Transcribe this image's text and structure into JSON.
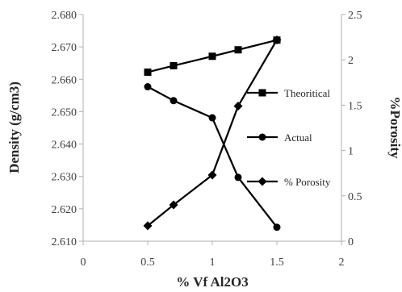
{
  "chart_data": {
    "type": "line",
    "xlabel": "% Vf Al2O3",
    "ylabel": "Density (g/cm3)",
    "y2label": "%Porosity",
    "x_ticks": [
      "0",
      "0.5",
      "1",
      "1.5",
      "2"
    ],
    "y_ticks": [
      "2.610",
      "2.620",
      "2.630",
      "2.640",
      "2.650",
      "2.660",
      "2.670",
      "2.680"
    ],
    "y2_ticks": [
      "0",
      "0.5",
      "1",
      "1.5",
      "2",
      "2.5"
    ],
    "xlim": [
      0,
      2
    ],
    "ylim": [
      2.61,
      2.68
    ],
    "y2lim": [
      0,
      2.5
    ],
    "grid": false,
    "legend_position": "right, between series",
    "series": [
      {
        "name": "Theoritical",
        "axis": "left",
        "marker": "square",
        "color": "#000000",
        "x": [
          0.5,
          0.7,
          1.0,
          1.2,
          1.5
        ],
        "y": [
          2.6622,
          2.6642,
          2.6671,
          2.6691,
          2.6721
        ]
      },
      {
        "name": "Actual",
        "axis": "left",
        "marker": "circle",
        "color": "#000000",
        "x": [
          0.5,
          0.7,
          1.0,
          1.2,
          1.5
        ],
        "y": [
          2.6577,
          2.6534,
          2.6481,
          2.6297,
          2.6143
        ]
      },
      {
        "name": "% Porosity",
        "axis": "right",
        "marker": "diamond",
        "color": "#000000",
        "x": [
          0.5,
          0.7,
          1.0,
          1.2,
          1.5
        ],
        "y": [
          0.17,
          0.4,
          0.73,
          1.49,
          2.22
        ]
      }
    ]
  }
}
